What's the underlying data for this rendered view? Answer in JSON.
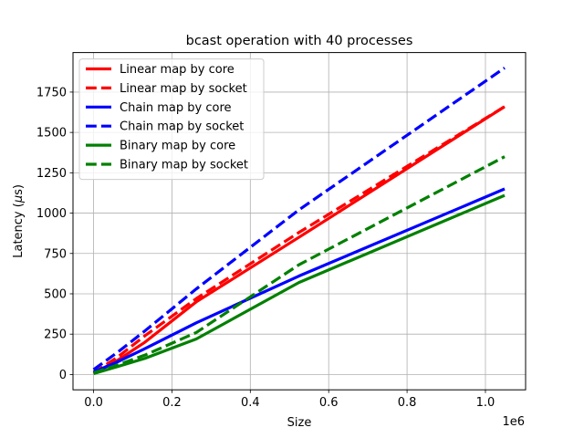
{
  "chart_data": {
    "type": "line",
    "title": "bcast operation with 40 processes",
    "xlabel": "Size",
    "ylabel": "Latency (μs)",
    "ylabel_prefix": "Latency (",
    "ylabel_mu": "μ",
    "ylabel_suffix": "s)",
    "x_offset_label": "1e6",
    "xlim": [
      -0.0525,
      1.1025
    ],
    "ylim": [
      -95,
      1995
    ],
    "x_ticks": [
      0.0,
      0.2,
      0.4,
      0.6,
      0.8,
      1.0
    ],
    "x_tick_labels": [
      "0.0",
      "0.2",
      "0.4",
      "0.6",
      "0.8",
      "1.0"
    ],
    "y_ticks": [
      0,
      250,
      500,
      750,
      1000,
      1250,
      1500,
      1750
    ],
    "y_tick_labels": [
      "0",
      "250",
      "500",
      "750",
      "1000",
      "1250",
      "1500",
      "1750"
    ],
    "grid": true,
    "legend_position": "top-left",
    "series": [
      {
        "name": "Linear map by core",
        "color": "#ff0000",
        "dash": "solid",
        "x": [
          0,
          0.0625,
          0.131,
          0.262,
          0.524,
          1.049
        ],
        "y": [
          5,
          90,
          200,
          450,
          850,
          1660
        ]
      },
      {
        "name": "Linear map by socket",
        "color": "#ff0000",
        "dash": "dashed",
        "x": [
          0,
          0.0625,
          0.131,
          0.262,
          0.524,
          1.049
        ],
        "y": [
          10,
          110,
          240,
          470,
          880,
          1660
        ]
      },
      {
        "name": "Chain map by core",
        "color": "#0000ff",
        "dash": "solid",
        "x": [
          0,
          0.0625,
          0.131,
          0.262,
          0.524,
          1.049
        ],
        "y": [
          15,
          80,
          160,
          320,
          610,
          1150
        ]
      },
      {
        "name": "Chain map by socket",
        "color": "#0000ff",
        "dash": "dashed",
        "x": [
          0,
          0.0625,
          0.131,
          0.262,
          0.524,
          1.049
        ],
        "y": [
          30,
          140,
          270,
          530,
          1020,
          1900
        ]
      },
      {
        "name": "Binary map by core",
        "color": "#008000",
        "dash": "solid",
        "x": [
          0,
          0.0625,
          0.131,
          0.262,
          0.524,
          1.049
        ],
        "y": [
          5,
          50,
          100,
          220,
          570,
          1110
        ]
      },
      {
        "name": "Binary map by socket",
        "color": "#008000",
        "dash": "dashed",
        "x": [
          0,
          0.0625,
          0.131,
          0.262,
          0.524,
          1.049
        ],
        "y": [
          10,
          60,
          120,
          260,
          680,
          1350
        ]
      }
    ]
  }
}
